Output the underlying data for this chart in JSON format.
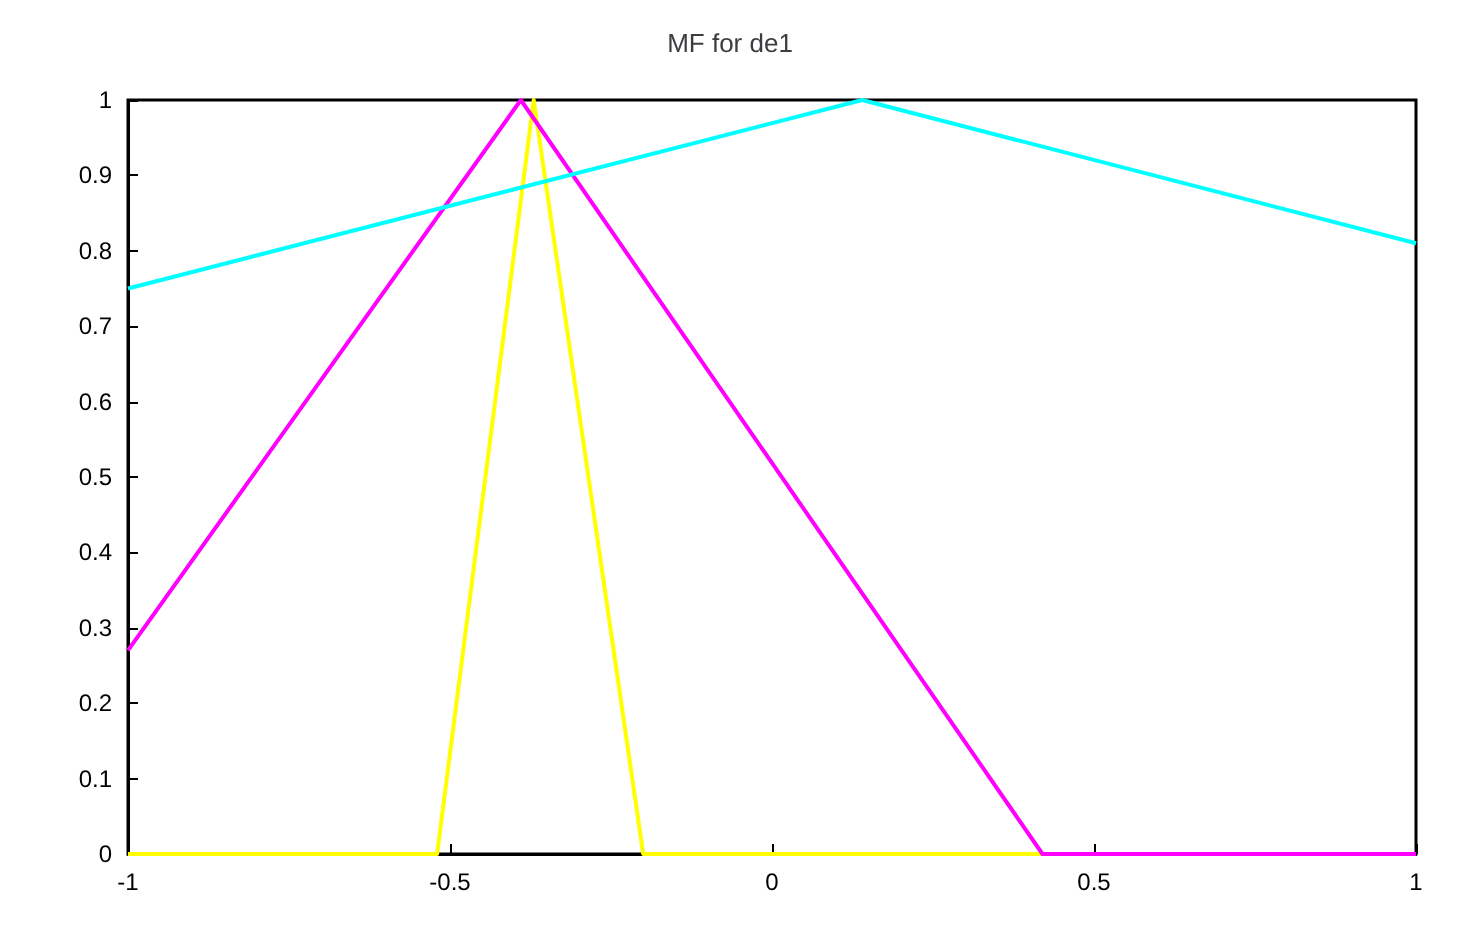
{
  "chart_data": {
    "type": "line",
    "title": "MF for de1",
    "xlim": [
      -1,
      1
    ],
    "xticks": [
      -1,
      -0.5,
      0,
      0.5,
      1
    ],
    "ylim": [
      0,
      1
    ],
    "yticks": [
      0,
      0.1,
      0.2,
      0.3,
      0.4,
      0.5,
      0.6,
      0.7,
      0.8,
      0.9,
      1
    ],
    "grid": false,
    "marker": "none",
    "line_style": "solid",
    "series": [
      {
        "color": "#ffff00",
        "x": [
          -1,
          -0.52,
          -0.37,
          -0.2,
          1
        ],
        "values": [
          0,
          0,
          1,
          0,
          0
        ]
      },
      {
        "color": "#ff00ff",
        "x": [
          -1,
          -0.39,
          0.42,
          1
        ],
        "values": [
          0.27,
          1,
          0,
          0
        ]
      },
      {
        "color": "#00ffff",
        "x": [
          -1,
          0.14,
          1
        ],
        "values": [
          0.75,
          1,
          0.81
        ]
      }
    ]
  }
}
